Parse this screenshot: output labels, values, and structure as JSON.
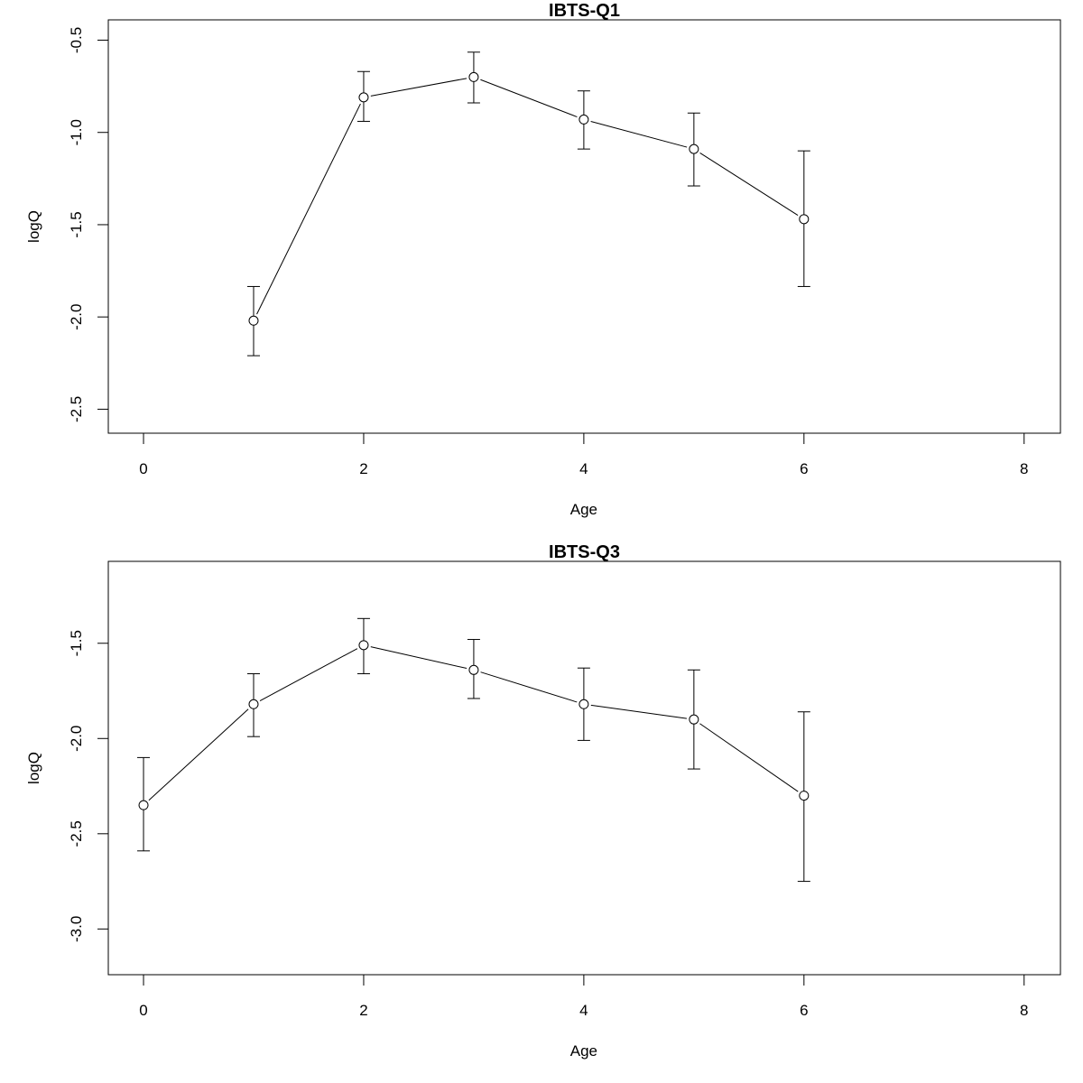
{
  "chart_data": [
    {
      "type": "line",
      "title": "IBTS-Q1",
      "xlabel": "Age",
      "ylabel": "logQ",
      "xlim": [
        -0.32,
        8.33
      ],
      "ylim": [
        -2.63,
        -0.39
      ],
      "xticks": [
        0,
        2,
        4,
        6,
        8
      ],
      "yticks": [
        -0.5,
        -1.0,
        -1.5,
        -2.0,
        -2.5
      ],
      "xtick_labels": [
        "0",
        "2",
        "4",
        "6",
        "8"
      ],
      "ytick_labels": [
        "-0.5",
        "-1.0",
        "-1.5",
        "-2.0",
        "-2.5"
      ],
      "grid": false,
      "marker": "open-circle",
      "error_bars": true,
      "x": [
        1,
        2,
        3,
        4,
        5,
        6
      ],
      "y": [
        -2.02,
        -0.81,
        -0.7,
        -0.93,
        -1.09,
        -1.47
      ],
      "y_lower": [
        -2.21,
        -0.94,
        -0.84,
        -1.09,
        -1.29,
        -1.835
      ],
      "y_upper": [
        -1.835,
        -0.67,
        -0.565,
        -0.775,
        -0.895,
        -1.1
      ]
    },
    {
      "type": "line",
      "title": "IBTS-Q3",
      "xlabel": "Age",
      "ylabel": "logQ",
      "xlim": [
        -0.32,
        8.33
      ],
      "ylim": [
        -3.24,
        -1.07
      ],
      "xticks": [
        0,
        2,
        4,
        6,
        8
      ],
      "yticks": [
        -1.5,
        -2.0,
        -2.5,
        -3.0
      ],
      "xtick_labels": [
        "0",
        "2",
        "4",
        "6",
        "8"
      ],
      "ytick_labels": [
        "-1.5",
        "-2.0",
        "-2.5",
        "-3.0"
      ],
      "grid": false,
      "marker": "open-circle",
      "error_bars": true,
      "x": [
        0,
        1,
        2,
        3,
        4,
        5,
        6
      ],
      "y": [
        -2.35,
        -1.82,
        -1.51,
        -1.64,
        -1.82,
        -1.9,
        -2.3
      ],
      "y_lower": [
        -2.59,
        -1.99,
        -1.66,
        -1.79,
        -2.01,
        -2.16,
        -2.75
      ],
      "y_upper": [
        -2.1,
        -1.66,
        -1.37,
        -1.48,
        -1.63,
        -1.64,
        -1.86
      ]
    }
  ]
}
